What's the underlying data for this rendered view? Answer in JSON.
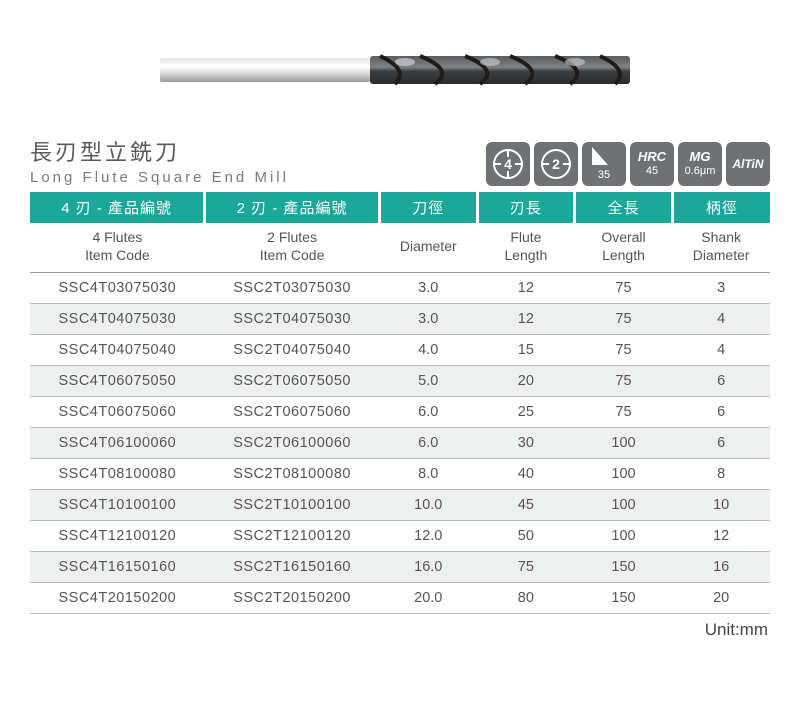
{
  "title": {
    "zh": "長刃型立銑刀",
    "en": "Long Flute Square End Mill"
  },
  "badges": {
    "flute4": "4",
    "flute2": "2",
    "helix": "35",
    "hrc_label": "HRC",
    "hrc_val": "45",
    "mg_label": "MG",
    "mg_val": "0.6μm",
    "coating": "AlTiN"
  },
  "columns": {
    "c1": {
      "zh": "4 刃 - 產品編號",
      "en_l1": "4 Flutes",
      "en_l2": "Item Code"
    },
    "c2": {
      "zh": "2 刃 - 產品編號",
      "en_l1": "2 Flutes",
      "en_l2": "Item Code"
    },
    "c3": {
      "zh": "刀徑",
      "en_l1": "Diameter",
      "en_l2": ""
    },
    "c4": {
      "zh": "刃長",
      "en_l1": "Flute",
      "en_l2": "Length"
    },
    "c5": {
      "zh": "全長",
      "en_l1": "Overall",
      "en_l2": "Length"
    },
    "c6": {
      "zh": "柄徑",
      "en_l1": "Shank",
      "en_l2": "Diameter"
    }
  },
  "rows": [
    {
      "f4": "SSC4T03075030",
      "f2": "SSC2T03075030",
      "dia": "3.0",
      "fl": "12",
      "ol": "75",
      "sd": "3"
    },
    {
      "f4": "SSC4T04075030",
      "f2": "SSC2T04075030",
      "dia": "3.0",
      "fl": "12",
      "ol": "75",
      "sd": "4"
    },
    {
      "f4": "SSC4T04075040",
      "f2": "SSC2T04075040",
      "dia": "4.0",
      "fl": "15",
      "ol": "75",
      "sd": "4"
    },
    {
      "f4": "SSC4T06075050",
      "f2": "SSC2T06075050",
      "dia": "5.0",
      "fl": "20",
      "ol": "75",
      "sd": "6"
    },
    {
      "f4": "SSC4T06075060",
      "f2": "SSC2T06075060",
      "dia": "6.0",
      "fl": "25",
      "ol": "75",
      "sd": "6"
    },
    {
      "f4": "SSC4T06100060",
      "f2": "SSC2T06100060",
      "dia": "6.0",
      "fl": "30",
      "ol": "100",
      "sd": "6"
    },
    {
      "f4": "SSC4T08100080",
      "f2": "SSC2T08100080",
      "dia": "8.0",
      "fl": "40",
      "ol": "100",
      "sd": "8"
    },
    {
      "f4": "SSC4T10100100",
      "f2": "SSC2T10100100",
      "dia": "10.0",
      "fl": "45",
      "ol": "100",
      "sd": "10"
    },
    {
      "f4": "SSC4T12100120",
      "f2": "SSC2T12100120",
      "dia": "12.0",
      "fl": "50",
      "ol": "100",
      "sd": "12"
    },
    {
      "f4": "SSC4T16150160",
      "f2": "SSC2T16150160",
      "dia": "16.0",
      "fl": "75",
      "ol": "150",
      "sd": "16"
    },
    {
      "f4": "SSC4T20150200",
      "f2": "SSC2T20150200",
      "dia": "20.0",
      "fl": "80",
      "ol": "150",
      "sd": "20"
    }
  ],
  "unit_label": "Unit:mm",
  "style": {
    "header_bg": "#1aa89a",
    "badge_bg": "#6f7274",
    "row_alt_bg": "#eef0f0",
    "border_color": "#b8b8b8",
    "text_color": "#555555"
  }
}
